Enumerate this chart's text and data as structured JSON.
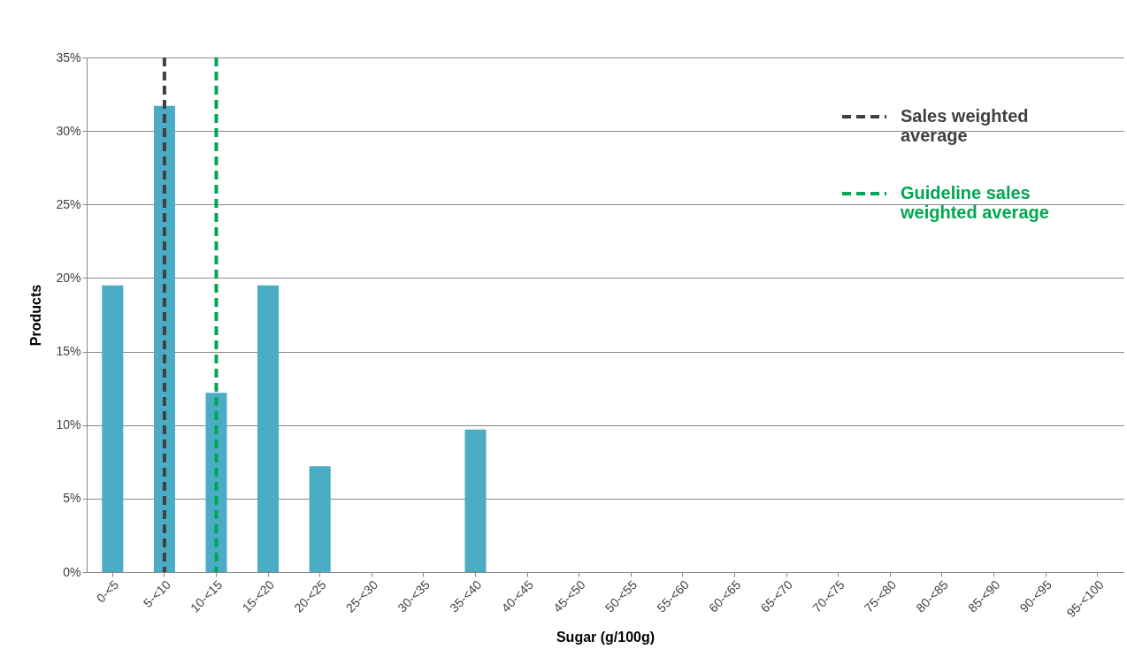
{
  "chart_data": {
    "type": "bar",
    "xlabel": "Sugar (g/100g)",
    "ylabel": "Products",
    "categories": [
      "0-<5",
      "5-<10",
      "10-<15",
      "15-<20",
      "20-<25",
      "25-<30",
      "30-<35",
      "35-<40",
      "40-<45",
      "45-<50",
      "50-<55",
      "55-<60",
      "60-<65",
      "65-<70",
      "70-<75",
      "75-<80",
      "80-<85",
      "85-<90",
      "90-<95",
      "95-<100"
    ],
    "values": [
      19.5,
      31.7,
      12.2,
      19.5,
      7.2,
      0,
      0,
      9.7,
      0,
      0,
      0,
      0,
      0,
      0,
      0,
      0,
      0,
      0,
      0,
      0
    ],
    "color": "#4bacc6",
    "ylim": [
      0,
      35
    ],
    "yticks": [
      {
        "value": 0,
        "label": "0%"
      },
      {
        "value": 5,
        "label": "5%"
      },
      {
        "value": 10,
        "label": "10%"
      },
      {
        "value": 15,
        "label": "15%"
      },
      {
        "value": 20,
        "label": "20%"
      },
      {
        "value": 25,
        "label": "25%"
      },
      {
        "value": 30,
        "label": "30%"
      },
      {
        "value": 35,
        "label": "35%"
      }
    ],
    "grid": "y",
    "ref_lines": [
      {
        "axis": "x",
        "value": "5-<10",
        "label": "Sales weighted average",
        "color": "#404040",
        "line_style": "dashed"
      },
      {
        "axis": "x",
        "value": "10-<15",
        "label": "Guideline sales weighted average",
        "color": "#00a651",
        "line_style": "dashed"
      }
    ]
  }
}
